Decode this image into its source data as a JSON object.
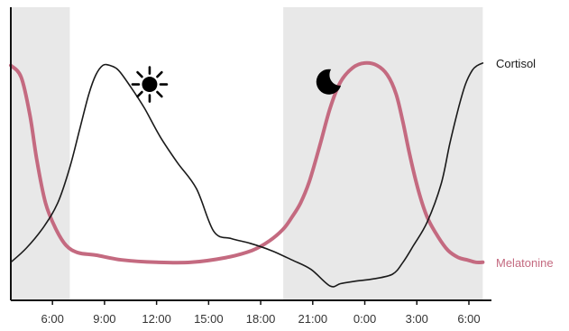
{
  "chart_data": {
    "type": "line",
    "title": "",
    "xlabel": "",
    "ylabel": "",
    "x_unit": "hour of day (continuing past midnight)",
    "xlim": [
      3.6,
      31.3
    ],
    "ylim": [
      0,
      100
    ],
    "grid": false,
    "legend": "inline labels at right end of each line",
    "x_ticks": [
      {
        "x": 6,
        "label": "6:00"
      },
      {
        "x": 9,
        "label": "9:00"
      },
      {
        "x": 12,
        "label": "12:00"
      },
      {
        "x": 15,
        "label": "15:00"
      },
      {
        "x": 18,
        "label": "18:00"
      },
      {
        "x": 21,
        "label": "21:00"
      },
      {
        "x": 24,
        "label": "0:00"
      },
      {
        "x": 27,
        "label": "3:00"
      },
      {
        "x": 30,
        "label": "6:00"
      }
    ],
    "night_shading": [
      [
        3.6,
        7.0
      ],
      [
        19.3,
        30.8
      ]
    ],
    "icons": [
      {
        "name": "sun-icon",
        "x": 11.6,
        "y": 88
      },
      {
        "name": "moon-icon",
        "x": 21.9,
        "y": 89
      }
    ],
    "series": [
      {
        "name": "Cortisol",
        "color": "#1a1a1a",
        "x": [
          3.6,
          4.5,
          5.5,
          6.3,
          7.0,
          7.6,
          8.1,
          8.5,
          8.9,
          9.3,
          9.8,
          10.5,
          11.3,
          12.2,
          13.2,
          14.3,
          15.3,
          16.3,
          17.4,
          18.6,
          19.8,
          20.9,
          22.0,
          22.6,
          23.4,
          24.5,
          25.6,
          26.2,
          26.8,
          27.6,
          28.4,
          28.9,
          29.4,
          29.8,
          30.2,
          30.5,
          30.8
        ],
        "y": [
          13,
          19,
          28,
          38,
          53,
          70,
          84,
          92,
          96,
          96,
          94,
          87,
          78,
          66,
          55,
          44,
          26,
          23,
          21,
          18,
          14,
          10,
          3,
          4,
          5,
          6,
          8,
          13,
          20,
          30,
          46,
          63,
          78,
          88,
          94,
          96,
          97
        ]
      },
      {
        "name": "Melatonine",
        "color": "#c46a80",
        "x": [
          3.6,
          4.2,
          4.7,
          5.1,
          5.6,
          6.2,
          6.8,
          7.5,
          8.5,
          10.0,
          12.0,
          14.0,
          16.0,
          17.5,
          18.5,
          19.3,
          19.8,
          20.3,
          20.8,
          21.4,
          22.0,
          22.6,
          23.3,
          24.0,
          24.7,
          25.3,
          25.8,
          26.2,
          26.6,
          27.1,
          27.6,
          28.2,
          28.8,
          29.4,
          29.9,
          30.4,
          30.8
        ],
        "y": [
          96,
          91,
          75,
          56,
          38,
          27,
          20,
          17,
          16,
          14,
          13,
          13,
          15,
          18,
          22,
          27,
          32,
          38,
          47,
          62,
          78,
          89,
          95,
          97,
          96,
          92,
          84,
          72,
          58,
          43,
          32,
          24,
          18,
          15,
          14,
          13,
          13
        ]
      }
    ]
  }
}
